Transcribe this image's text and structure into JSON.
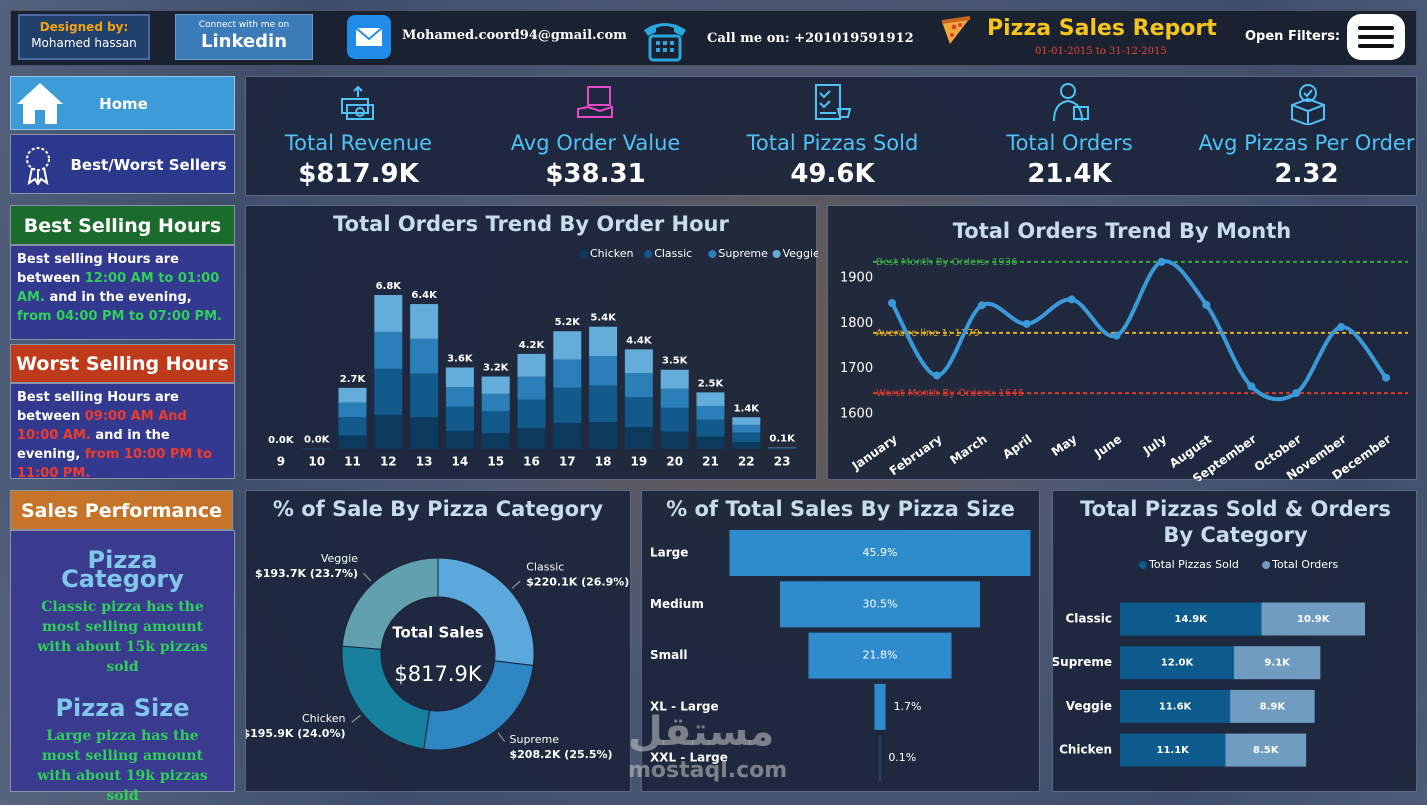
{
  "header": {
    "designed_by_label": "Designed by:",
    "designer": "Mohamed hassan",
    "linkedin_caption": "Connect with me on",
    "linkedin_logo": "Linkedin",
    "email": "Mohamed.coord94@gmail.com",
    "phone": "Call me on: +201019591912",
    "title": "Pizza Sales Report",
    "date_range": "01-01-2015 to 31-12-2015",
    "filters_label": "Open Filters:"
  },
  "nav": [
    "Home",
    "Best/Worst Sellers"
  ],
  "kpis": [
    {
      "label": "Total Revenue",
      "value": "$817.9K"
    },
    {
      "label": "Avg Order Value",
      "value": "$38.31"
    },
    {
      "label": "Total Pizzas Sold",
      "value": "49.6K"
    },
    {
      "label": "Total Orders",
      "value": "21.4K"
    },
    {
      "label": "Avg Pizzas Per Order",
      "value": "2.32"
    }
  ],
  "best_hours": {
    "title": "Best Selling Hours",
    "text": [
      "Best selling Hours are between ",
      "12:00 AM to 01:00 AM.",
      " and in the evening, ",
      "from 04:00 PM to 07:00 PM."
    ]
  },
  "worst_hours": {
    "title": "Worst Selling Hours",
    "text": [
      "Best selling Hours are between ",
      "09:00 AM And 10:00 AM.",
      " and in the evening, ",
      "from 10:00 PM to 11:00 PM."
    ]
  },
  "sales_performance": {
    "title": "Sales Performance",
    "category_heading": "Pizza Category",
    "category_text": "Classic pizza has the most selling amount with about 15k pizzas sold",
    "size_heading": "Pizza Size",
    "size_text": "Large pizza has the most selling amount with about 19k pizzas sold"
  },
  "watermark": [
    "مستقل",
    "mostaql.com"
  ],
  "chart_data": [
    {
      "type": "bar",
      "orientation": "vertical",
      "stacked": true,
      "title": "Total Orders Trend By Order Hour",
      "categories": [
        "9",
        "10",
        "11",
        "12",
        "13",
        "14",
        "15",
        "16",
        "17",
        "18",
        "19",
        "20",
        "21",
        "22",
        "23"
      ],
      "series": [
        {
          "name": "Chicken",
          "color": "#0b3a5e",
          "values": [
            1,
            4,
            600,
            1500,
            1410,
            790,
            705,
            925,
            1145,
            1190,
            970,
            770,
            550,
            310,
            15
          ]
        },
        {
          "name": "Classic",
          "color": "#12598c",
          "values": [
            2,
            6,
            810,
            2040,
            1920,
            1080,
            960,
            1260,
            1560,
            1620,
            1320,
            1050,
            750,
            420,
            21
          ]
        },
        {
          "name": "Supreme",
          "color": "#2a7fb8",
          "values": [
            1,
            4,
            645,
            1630,
            1535,
            865,
            770,
            1010,
            1250,
            1295,
            1055,
            840,
            600,
            335,
            17
          ]
        },
        {
          "name": "Veggie",
          "color": "#64acda",
          "values": [
            1,
            4,
            645,
            1630,
            1535,
            865,
            765,
            1005,
            1245,
            1295,
            1055,
            840,
            600,
            335,
            17
          ]
        }
      ],
      "totals": [
        5,
        18,
        2700,
        6800,
        6400,
        3600,
        3200,
        4200,
        5200,
        5400,
        4400,
        3500,
        2500,
        1400,
        70
      ],
      "total_labels": [
        "0.0K",
        "0.0K",
        "2.7K",
        "6.8K",
        "6.4K",
        "3.6K",
        "3.2K",
        "4.2K",
        "5.2K",
        "5.4K",
        "4.4K",
        "3.5K",
        "2.5K",
        "1.4K",
        "0.1K"
      ],
      "legend": "top-right"
    },
    {
      "type": "line",
      "title": "Total Orders Trend By Month",
      "categories": [
        "January",
        "February",
        "March",
        "April",
        "May",
        "June",
        "July",
        "August",
        "September",
        "October",
        "November",
        "December"
      ],
      "values": [
        1845,
        1685,
        1840,
        1799,
        1853,
        1773,
        1936,
        1841,
        1661,
        1646,
        1792,
        1680
      ],
      "color": "#3a9ad9",
      "smooth": true,
      "grid": false,
      "ylim": [
        1580,
        1960
      ],
      "yticks": [
        1600,
        1700,
        1800,
        1900
      ],
      "reference_lines": [
        {
          "label": "Best Month By Orders: 1936",
          "value": 1936,
          "color": "#3aa845"
        },
        {
          "label": "Average line 1: 1779",
          "value": 1779,
          "color": "#e0b020"
        },
        {
          "label": "Worst Month By Orders: 1646",
          "value": 1646,
          "color": "#d93a2a"
        }
      ]
    },
    {
      "type": "pie",
      "donut": true,
      "title": "% of Sale By Pizza Category",
      "categories": [
        "Classic",
        "Supreme",
        "Chicken",
        "Veggie"
      ],
      "values": [
        220100,
        208200,
        195900,
        193700
      ],
      "value_labels": [
        "$220.1K (26.9%)",
        "$208.2K (25.5%)",
        "$195.9K (24.0%)",
        "$193.7K (23.7%)"
      ],
      "colors": [
        "#5aa8dc",
        "#2d86c2",
        "#17809f",
        "#61a0ae"
      ],
      "center_title": "Total Sales",
      "center_label": "$817.9K"
    },
    {
      "type": "funnel",
      "title": "% of Total Sales By Pizza Size",
      "categories": [
        "Large",
        "Medium",
        "Small",
        "XL - Large",
        "XXL - Large"
      ],
      "values": [
        45.9,
        30.5,
        21.8,
        1.7,
        0.1
      ],
      "value_labels": [
        "45.9%",
        "30.5%",
        "21.8%",
        "1.7%",
        "0.1%"
      ],
      "color": "#2e8ccd"
    },
    {
      "type": "bar",
      "orientation": "horizontal",
      "stacked": true,
      "title": "Total Pizzas Sold & Orders By Category",
      "categories": [
        "Classic",
        "Supreme",
        "Veggie",
        "Chicken"
      ],
      "series": [
        {
          "name": "Total Pizzas Sold",
          "color": "#0d5a8c",
          "values": [
            14900,
            12000,
            11600,
            11100
          ],
          "value_labels": [
            "14.9K",
            "12.0K",
            "11.6K",
            "11.1K"
          ]
        },
        {
          "name": "Total Orders",
          "color": "#6f9cc0",
          "values": [
            10900,
            9100,
            8900,
            8500
          ],
          "value_labels": [
            "10.9K",
            "9.1K",
            "8.9K",
            "8.5K"
          ]
        }
      ],
      "legend": "top-center"
    }
  ]
}
